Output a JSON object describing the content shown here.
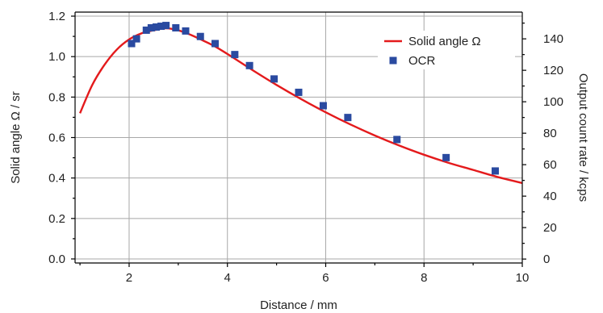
{
  "chart_data": {
    "type": "line",
    "title": "",
    "xlabel": "Distance / mm",
    "ylabel": "Solid angle Ω / sr",
    "y2label": "Output count rate / kcps",
    "xlim": [
      0.9,
      10
    ],
    "ylim": [
      -0.02,
      1.22
    ],
    "y2lim": [
      -2.5,
      157
    ],
    "x_ticks": [
      2,
      4,
      6,
      8,
      10
    ],
    "y_ticks": [
      0.0,
      0.2,
      0.4,
      0.6,
      0.8,
      1.0,
      1.2
    ],
    "y_tick_labels": [
      "0.0",
      "0.2",
      "0.4",
      "0.6",
      "0.8",
      "1.0",
      "1.2"
    ],
    "y2_ticks": [
      0,
      20,
      40,
      60,
      80,
      100,
      120,
      140
    ],
    "grid": true,
    "legend_position": "top-right",
    "series": [
      {
        "name": "Solid angle Ω",
        "kind": "line",
        "axis": "left",
        "color": "#e41a1c",
        "x": [
          1.0,
          1.25,
          1.5,
          1.75,
          2.0,
          2.25,
          2.5,
          2.75,
          3.0,
          3.25,
          3.5,
          3.75,
          4.0,
          4.5,
          5.0,
          5.5,
          6.0,
          6.5,
          7.0,
          7.5,
          8.0,
          8.5,
          9.0,
          9.5,
          10.0
        ],
        "values": [
          0.72,
          0.86,
          0.96,
          1.035,
          1.085,
          1.115,
          1.13,
          1.14,
          1.13,
          1.108,
          1.08,
          1.05,
          1.013,
          0.935,
          0.86,
          0.79,
          0.725,
          0.665,
          0.61,
          0.56,
          0.515,
          0.475,
          0.44,
          0.405,
          0.375
        ]
      },
      {
        "name": "OCR",
        "kind": "scatter",
        "axis": "right",
        "color": "#2a4aa0",
        "x": [
          2.05,
          2.15,
          2.35,
          2.45,
          2.55,
          2.65,
          2.75,
          2.95,
          3.15,
          3.45,
          3.75,
          4.15,
          4.45,
          4.95,
          5.45,
          5.95,
          6.45,
          7.45,
          8.45,
          9.45
        ],
        "values": [
          137,
          140,
          145.5,
          147,
          147.5,
          148,
          148.5,
          147,
          145,
          141.5,
          137,
          130,
          123,
          114.5,
          106,
          97.5,
          90,
          76,
          64.5,
          56
        ]
      }
    ]
  }
}
